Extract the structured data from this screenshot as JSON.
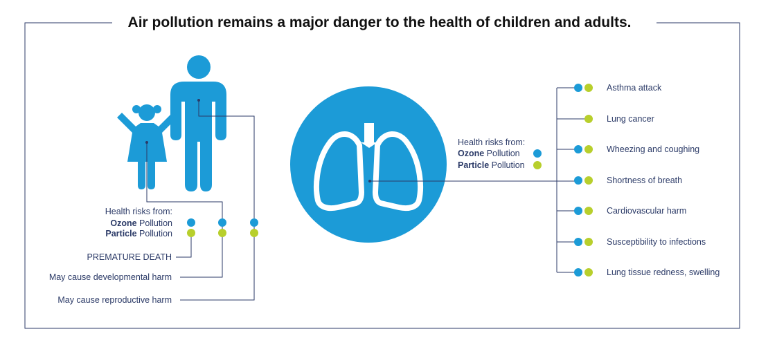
{
  "title": "Air pollution remains a major danger to the health of children and adults.",
  "colors": {
    "ozone": "#1c9bd7",
    "particle": "#b8cf2c",
    "figure": "#1c9bd7",
    "line": "#2b3a67",
    "border": "#2b3a67"
  },
  "legend_left": {
    "heading": "Health risks from:",
    "ozone_bold": "Ozone",
    "particle_bold": "Particle",
    "suffix": " Pollution"
  },
  "legend_center": {
    "heading": "Health risks from:",
    "ozone_bold": "Ozone",
    "particle_bold": "Particle",
    "suffix": " Pollution"
  },
  "left_risks": [
    {
      "label": "PREMATURE DEATH",
      "ozone": true,
      "particle": true
    },
    {
      "label": "May cause developmental harm",
      "ozone": true,
      "particle": true
    },
    {
      "label": "May cause reproductive harm",
      "ozone": true,
      "particle": true
    }
  ],
  "lung_risks": [
    {
      "label": "Asthma attack",
      "ozone": true,
      "particle": true
    },
    {
      "label": "Lung cancer",
      "ozone": false,
      "particle": true
    },
    {
      "label": "Wheezing and coughing",
      "ozone": true,
      "particle": true
    },
    {
      "label": "Shortness of breath",
      "ozone": true,
      "particle": true
    },
    {
      "label": "Cardiovascular harm",
      "ozone": true,
      "particle": true
    },
    {
      "label": "Susceptibility to infections",
      "ozone": true,
      "particle": true
    },
    {
      "label": "Lung tissue redness, swelling",
      "ozone": true,
      "particle": true
    }
  ]
}
